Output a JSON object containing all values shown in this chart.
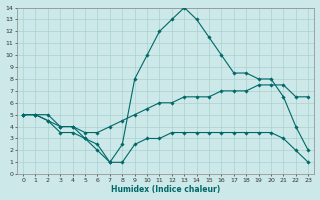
{
  "xlabel": "Humidex (Indice chaleur)",
  "ylabel": "",
  "xlim": [
    -0.5,
    23.5
  ],
  "ylim": [
    0,
    14
  ],
  "xticks": [
    0,
    1,
    2,
    3,
    4,
    5,
    6,
    7,
    8,
    9,
    10,
    11,
    12,
    13,
    14,
    15,
    16,
    17,
    18,
    19,
    20,
    21,
    22,
    23
  ],
  "yticks": [
    0,
    1,
    2,
    3,
    4,
    5,
    6,
    7,
    8,
    9,
    10,
    11,
    12,
    13,
    14
  ],
  "background_color": "#cce8e8",
  "grid_color": "#aad0d0",
  "line_color": "#006868",
  "lines": [
    {
      "x": [
        0,
        1,
        2,
        3,
        4,
        5,
        6,
        7,
        8,
        9,
        10,
        11,
        12,
        13,
        14,
        15,
        16,
        17,
        18,
        19,
        20,
        21,
        22,
        23
      ],
      "y": [
        5,
        5,
        5,
        4,
        4,
        3,
        2,
        1,
        2.5,
        8,
        10,
        12,
        13,
        14,
        13,
        11.5,
        10,
        8.5,
        8.5,
        8,
        8,
        6.5,
        4,
        2
      ]
    },
    {
      "x": [
        0,
        1,
        2,
        3,
        4,
        5,
        6,
        7,
        8,
        9,
        10,
        11,
        12,
        13,
        14,
        15,
        16,
        17,
        18,
        19,
        20,
        21,
        22,
        23
      ],
      "y": [
        5,
        5,
        4.5,
        4,
        4,
        3.5,
        3.5,
        4,
        4.5,
        5,
        5.5,
        6,
        6,
        6.5,
        6.5,
        6.5,
        7,
        7,
        7,
        7.5,
        7.5,
        7.5,
        6.5,
        6.5
      ]
    },
    {
      "x": [
        0,
        1,
        2,
        3,
        4,
        5,
        6,
        7,
        8,
        9,
        10,
        11,
        12,
        13,
        14,
        15,
        16,
        17,
        18,
        19,
        20,
        21,
        22,
        23
      ],
      "y": [
        5,
        5,
        4.5,
        3.5,
        3.5,
        3,
        2.5,
        1,
        1,
        2.5,
        3,
        3,
        3.5,
        3.5,
        3.5,
        3.5,
        3.5,
        3.5,
        3.5,
        3.5,
        3.5,
        3,
        2,
        1
      ]
    }
  ]
}
